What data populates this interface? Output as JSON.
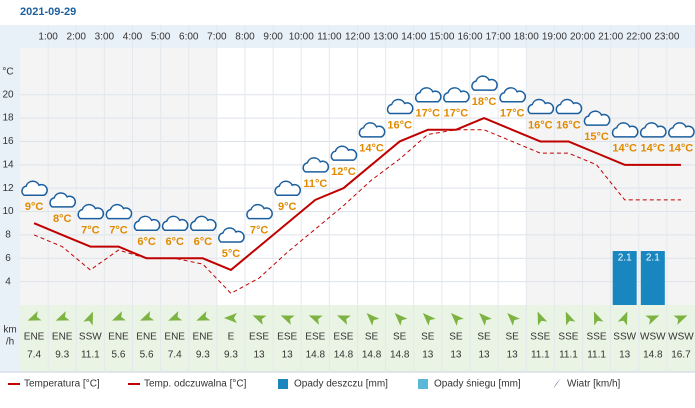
{
  "chart_data": {
    "type": "line",
    "title": "2021-09-29",
    "ylabel": "°C",
    "xlim": [
      0,
      24
    ],
    "xticks": [
      {
        "value": 1,
        "label": "1:00"
      },
      {
        "value": 2,
        "label": "2:00"
      },
      {
        "value": 3,
        "label": "3:00"
      },
      {
        "value": 4,
        "label": "4:00"
      },
      {
        "value": 5,
        "label": "5:00"
      },
      {
        "value": 6,
        "label": "6:00"
      },
      {
        "value": 7,
        "label": "7:00"
      },
      {
        "value": 8,
        "label": "8:00"
      },
      {
        "value": 9,
        "label": "9:00"
      },
      {
        "value": 10,
        "label": "10:00"
      },
      {
        "value": 11,
        "label": "11:00"
      },
      {
        "value": 12,
        "label": "12:00"
      },
      {
        "value": 13,
        "label": "13:00"
      },
      {
        "value": 14,
        "label": "14:00"
      },
      {
        "value": 15,
        "label": "15:00"
      },
      {
        "value": 16,
        "label": "16:00"
      },
      {
        "value": 17,
        "label": "17:00"
      },
      {
        "value": 18,
        "label": "18:00"
      },
      {
        "value": 19,
        "label": "19:00"
      },
      {
        "value": 20,
        "label": "20:00"
      },
      {
        "value": 21,
        "label": "21:00"
      },
      {
        "value": 22,
        "label": "22:00"
      },
      {
        "value": 23,
        "label": "23:00"
      }
    ],
    "x": [
      0.5,
      1.5,
      2.5,
      3.5,
      4.5,
      5.5,
      6.5,
      7.5,
      8.5,
      9.5,
      10.5,
      11.5,
      12.5,
      13.5,
      14.5,
      15.5,
      16.5,
      17.5,
      18.5,
      19.5,
      20.5,
      21.5,
      22.5,
      23.5
    ],
    "ylim": [
      2,
      24
    ],
    "yticks": [
      4,
      6,
      8,
      10,
      12,
      14,
      16,
      18,
      20
    ],
    "y2lim": [
      0,
      10
    ],
    "grid": true,
    "series": [
      {
        "name": "Temperatura [°C]",
        "color": "#c00000",
        "style": "solid",
        "values": [
          9,
          8,
          7,
          7,
          6,
          6,
          6,
          5,
          7,
          9,
          11,
          12,
          14,
          16,
          17,
          17,
          18,
          17,
          16,
          16,
          15,
          14,
          14,
          14
        ],
        "value_labels": [
          "9°C",
          "8°C",
          "7°C",
          "7°C",
          "6°C",
          "6°C",
          "6°C",
          "5°C",
          "7°C",
          "9°C",
          "11°C",
          "12°C",
          "14°C",
          "16°C",
          "17°C",
          "17°C",
          "18°C",
          "17°C",
          "16°C",
          "16°C",
          "15°C",
          "14°C",
          "14°C",
          "14°C"
        ]
      },
      {
        "name": "Temp. odczuwalna [°C]",
        "color": "#c00000",
        "style": "dashed",
        "values": [
          8,
          7,
          5,
          6.7,
          6,
          6,
          5.5,
          3,
          4.3,
          6.5,
          8.5,
          10.5,
          12.7,
          14.5,
          16.6,
          17,
          17,
          16,
          15,
          15,
          14,
          11,
          11,
          11
        ]
      },
      {
        "name": "Opady deszczu [mm]",
        "color": "#1a86c0",
        "axis": "y2",
        "kind": "bar",
        "values": [
          0,
          0,
          0,
          0,
          0,
          0,
          0,
          0,
          0,
          0,
          0,
          0,
          0,
          0,
          0,
          0,
          0,
          0,
          0,
          0,
          0,
          2.1,
          2.1,
          0
        ]
      },
      {
        "name": "Opady śniegu [mm]",
        "color": "#5ab8d6",
        "axis": "y2",
        "kind": "bar",
        "values": [
          0,
          0,
          0,
          0,
          0,
          0,
          0,
          0,
          0,
          0,
          0,
          0,
          0,
          0,
          0,
          0,
          0,
          0,
          0,
          0,
          0,
          0,
          0,
          0
        ]
      }
    ],
    "wind": {
      "name": "Wiatr [km/h]",
      "color": "#7cb342",
      "axis_label": [
        "km",
        "/h"
      ],
      "directions": [
        "ENE",
        "ENE",
        "SSW",
        "ENE",
        "ENE",
        "ENE",
        "ENE",
        "E",
        "ESE",
        "ESE",
        "ESE",
        "ESE",
        "SE",
        "SE",
        "SE",
        "SE",
        "SE",
        "SE",
        "SSE",
        "SSE",
        "SSE",
        "SSW",
        "WSW",
        "WSW"
      ],
      "speeds": [
        7.4,
        9.3,
        11.1,
        5.6,
        5.6,
        7.4,
        9.3,
        9.3,
        13,
        13,
        14.8,
        14.8,
        14.8,
        14.8,
        13,
        13,
        13,
        13,
        11.1,
        11.1,
        11.1,
        13,
        14.8,
        16.7
      ]
    }
  }
}
